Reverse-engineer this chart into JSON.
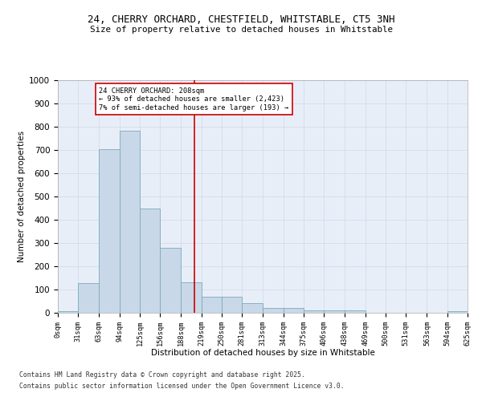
{
  "title_line1": "24, CHERRY ORCHARD, CHESTFIELD, WHITSTABLE, CT5 3NH",
  "title_line2": "Size of property relative to detached houses in Whitstable",
  "xlabel": "Distribution of detached houses by size in Whitstable",
  "ylabel": "Number of detached properties",
  "annotation_line1": "24 CHERRY ORCHARD: 208sqm",
  "annotation_line2": "← 93% of detached houses are smaller (2,423)",
  "annotation_line3": "7% of semi-detached houses are larger (193) →",
  "marker_value": 208,
  "bin_edges": [
    0,
    31,
    63,
    94,
    125,
    156,
    188,
    219,
    250,
    281,
    313,
    344,
    375,
    406,
    438,
    469,
    500,
    531,
    563,
    594,
    625
  ],
  "bar_heights": [
    8,
    128,
    703,
    782,
    450,
    278,
    130,
    68,
    68,
    40,
    22,
    22,
    10,
    10,
    10,
    0,
    0,
    0,
    0,
    8
  ],
  "bar_color": "#c8d8e8",
  "bar_edge_color": "#7aaabb",
  "grid_color": "#d0d8e8",
  "marker_color": "#cc0000",
  "annotation_box_color": "#cc0000",
  "background_color": "#e8eef8",
  "footer_line1": "Contains HM Land Registry data © Crown copyright and database right 2025.",
  "footer_line2": "Contains public sector information licensed under the Open Government Licence v3.0.",
  "ylim": [
    0,
    1000
  ],
  "yticks": [
    0,
    100,
    200,
    300,
    400,
    500,
    600,
    700,
    800,
    900,
    1000
  ]
}
